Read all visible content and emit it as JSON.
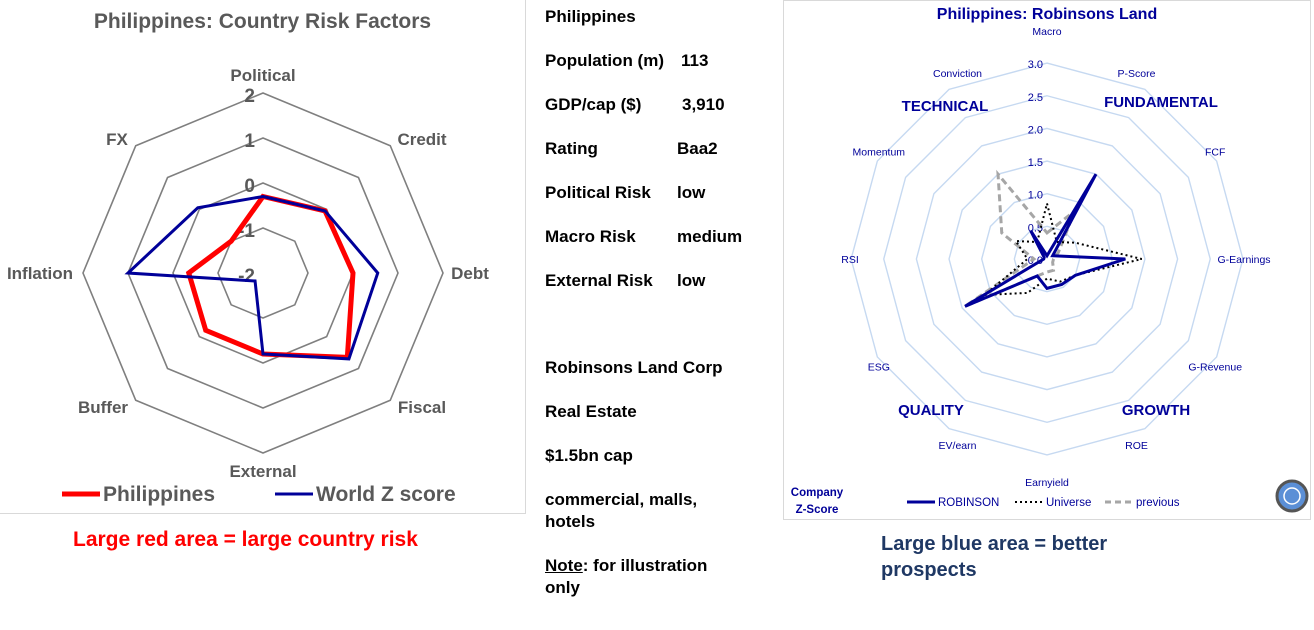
{
  "left": {
    "title": "Philippines: Country Risk Factors",
    "caption": "Large red area = large country risk"
  },
  "info": {
    "country": "Philippines",
    "rows": [
      {
        "label": "Population (m)",
        "value": "113"
      },
      {
        "label": "GDP/cap ($)",
        "value": "3,910"
      },
      {
        "label": "Rating",
        "value": "Baa2"
      },
      {
        "label": "Political Risk",
        "value": "low"
      },
      {
        "label": "Macro Risk",
        "value": "medium"
      },
      {
        "label": "External Risk",
        "value": "low"
      }
    ],
    "company": "Robinsons Land Corp",
    "sector": "Real Estate",
    "cap": "$1.5bn cap",
    "business": "commercial, malls, hotels",
    "note_label": "Note",
    "note_text": ": for illustration only"
  },
  "right": {
    "title": "Philippines: Robinsons Land",
    "caption": "Large blue area = better prospects",
    "zscore_label_1": "Company",
    "zscore_label_2": "Z-Score",
    "groups": [
      "TECHNICAL",
      "FUNDAMENTAL",
      "QUALITY",
      "GROWTH"
    ]
  },
  "chart_data": [
    {
      "type": "radar",
      "title": "Philippines: Country Risk Factors",
      "categories": [
        "Political",
        "Credit",
        "Debt",
        "Fiscal",
        "External",
        "Buffer",
        "Inflation",
        "FX"
      ],
      "rlim": [
        -2,
        2
      ],
      "ticks": [
        "-2",
        "-1",
        "0",
        "1",
        "2"
      ],
      "legend_position": "bottom",
      "series": [
        {
          "name": "Philippines",
          "color": "#ff0000",
          "values": [
            -0.3,
            -0.05,
            0.0,
            0.65,
            -0.2,
            -0.2,
            -0.35,
            -1.0
          ]
        },
        {
          "name": "World Z score",
          "color": "#000099",
          "values": [
            -0.3,
            -0.05,
            0.55,
            0.7,
            -0.2,
            -1.75,
            1.0,
            0.05
          ]
        }
      ]
    },
    {
      "type": "radar",
      "title": "Philippines: Robinsons Land",
      "categories": [
        "Macro",
        "P-Score",
        "FCF",
        "G-Earnings",
        "G-Revenue",
        "ROE",
        "Earnyield",
        "EV/earn",
        "ESG",
        "RSI",
        "Momentum",
        "Conviction"
      ],
      "rlim": [
        0,
        3
      ],
      "ticks": [
        "0.0",
        "0.5",
        "1.0",
        "1.5",
        "2.0",
        "2.5",
        "3.0"
      ],
      "legend_position": "bottom",
      "series": [
        {
          "name": "ROBINSON",
          "color": "#000099",
          "style": "solid",
          "values": [
            0.05,
            1.5,
            0.1,
            1.2,
            0.5,
            0.45,
            0.45,
            0.3,
            1.45,
            0.05,
            0.05,
            0.5
          ]
        },
        {
          "name": "Universe",
          "color": "#000000",
          "style": "dotted",
          "values": [
            0.85,
            0.3,
            0.5,
            1.45,
            0.5,
            0.4,
            0.3,
            0.6,
            1.1,
            0.3,
            0.55,
            0.3
          ]
        },
        {
          "name": "previous",
          "color": "#a6a6a6",
          "style": "dashed",
          "values": [
            0.4,
            0.85,
            0.2,
            0.1,
            0.1,
            0.2,
            0.2,
            0.3,
            1.45,
            0.2,
            0.8,
            1.5
          ]
        }
      ]
    }
  ]
}
